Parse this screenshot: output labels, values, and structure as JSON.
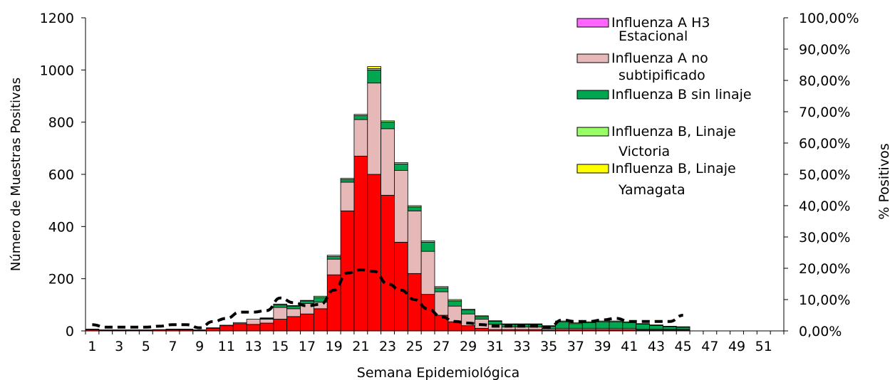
{
  "chart_data": {
    "type": "bar",
    "stacked": true,
    "xlabel": "Semana Epidemiológica",
    "ylabel": "Número de Muestras Positivas",
    "y2label": "% Positivos",
    "ylim": [
      0,
      1200
    ],
    "yticks": [
      "0",
      "200",
      "400",
      "600",
      "800",
      "1000",
      "1200"
    ],
    "y2lim": [
      0,
      100
    ],
    "y2ticks": [
      "0,00%",
      "10,00%",
      "20,00%",
      "30,00%",
      "40,00%",
      "50,00%",
      "60,00%",
      "70,00%",
      "80,00%",
      "90,00%",
      "100,00%"
    ],
    "categories": [
      1,
      2,
      3,
      4,
      5,
      6,
      7,
      8,
      9,
      10,
      11,
      12,
      13,
      14,
      15,
      16,
      17,
      18,
      19,
      20,
      21,
      22,
      23,
      24,
      25,
      26,
      27,
      28,
      29,
      30,
      31,
      32,
      33,
      34,
      35,
      36,
      37,
      38,
      39,
      40,
      41,
      42,
      43,
      44,
      45,
      46,
      47,
      48,
      49,
      50,
      51,
      52
    ],
    "xtick_labels": [
      "1",
      "3",
      "5",
      "7",
      "9",
      "11",
      "13",
      "15",
      "17",
      "19",
      "21",
      "23",
      "25",
      "27",
      "29",
      "31",
      "33",
      "35",
      "37",
      "39",
      "41",
      "43",
      "45",
      "47",
      "49",
      "51"
    ],
    "grid": false,
    "legend_position": "top-right",
    "series": [
      {
        "name": "",
        "color": "#ff0000",
        "values": [
          5,
          3,
          3,
          3,
          3,
          4,
          5,
          5,
          3,
          10,
          20,
          28,
          25,
          30,
          45,
          55,
          65,
          85,
          215,
          460,
          670,
          600,
          520,
          340,
          220,
          140,
          60,
          35,
          20,
          10,
          5,
          5,
          5,
          5,
          3,
          5,
          5,
          5,
          5,
          5,
          5,
          3,
          3,
          3,
          3,
          0,
          0,
          0,
          0,
          0,
          0,
          0
        ]
      },
      {
        "name": "Influenza A H3 Estacional",
        "color": "#ff66ff",
        "values": [
          0,
          0,
          0,
          0,
          0,
          0,
          0,
          0,
          0,
          0,
          0,
          0,
          0,
          0,
          0,
          0,
          0,
          0,
          0,
          0,
          0,
          0,
          0,
          0,
          0,
          0,
          0,
          0,
          0,
          0,
          0,
          0,
          0,
          0,
          0,
          0,
          0,
          0,
          0,
          0,
          0,
          0,
          0,
          0,
          0,
          0,
          0,
          0,
          0,
          0,
          0,
          0
        ]
      },
      {
        "name": "Influenza A no subtipificado",
        "color": "#e6b8b8",
        "values": [
          2,
          1,
          1,
          1,
          1,
          1,
          2,
          2,
          1,
          2,
          2,
          4,
          20,
          15,
          45,
          30,
          40,
          25,
          60,
          110,
          140,
          350,
          255,
          275,
          240,
          165,
          90,
          60,
          45,
          35,
          20,
          10,
          10,
          10,
          5,
          5,
          5,
          5,
          5,
          5,
          5,
          3,
          3,
          3,
          3,
          0,
          0,
          0,
          0,
          0,
          0,
          0
        ]
      },
      {
        "name": "Influenza B sin linaje",
        "color": "#00a650",
        "values": [
          0,
          0,
          0,
          0,
          0,
          0,
          0,
          0,
          0,
          0,
          0,
          0,
          0,
          3,
          10,
          10,
          10,
          18,
          10,
          10,
          15,
          50,
          25,
          25,
          15,
          35,
          15,
          20,
          15,
          10,
          12,
          10,
          10,
          10,
          10,
          25,
          18,
          22,
          25,
          25,
          22,
          20,
          15,
          10,
          8,
          0,
          0,
          0,
          0,
          0,
          0,
          0
        ]
      },
      {
        "name": "Influenza B, Linaje Victoria",
        "color": "#99ff66",
        "values": [
          0,
          0,
          0,
          0,
          0,
          0,
          0,
          0,
          0,
          0,
          0,
          0,
          0,
          2,
          3,
          2,
          2,
          5,
          5,
          5,
          5,
          5,
          5,
          5,
          5,
          5,
          5,
          5,
          3,
          3,
          2,
          2,
          2,
          2,
          2,
          3,
          3,
          3,
          3,
          3,
          3,
          2,
          2,
          2,
          2,
          0,
          0,
          0,
          0,
          0,
          0,
          0
        ]
      },
      {
        "name": "Influenza B, Linaje Yamagata",
        "color": "#ffff00",
        "values": [
          0,
          0,
          0,
          0,
          0,
          0,
          0,
          0,
          0,
          0,
          0,
          0,
          0,
          0,
          0,
          0,
          0,
          0,
          0,
          0,
          0,
          8,
          0,
          0,
          0,
          0,
          0,
          0,
          0,
          0,
          0,
          0,
          0,
          0,
          0,
          0,
          0,
          0,
          0,
          0,
          0,
          0,
          0,
          0,
          0,
          0,
          0,
          0,
          0,
          0,
          0,
          0
        ]
      }
    ],
    "line": {
      "name": "% Positivos",
      "axis": "right",
      "style": "dashed",
      "color": "#000000",
      "values": [
        2,
        1.2,
        1.2,
        1.2,
        1.2,
        1.5,
        2,
        2,
        1,
        3,
        4,
        6,
        6,
        6.5,
        10.5,
        9,
        8,
        8.5,
        13,
        18.5,
        19.5,
        19,
        15,
        13,
        10,
        7,
        4.5,
        3,
        2.5,
        2,
        1.5,
        1.5,
        1.5,
        1.5,
        1,
        3.5,
        3,
        3,
        3.5,
        4,
        3,
        3,
        3,
        3,
        5
      ]
    }
  }
}
